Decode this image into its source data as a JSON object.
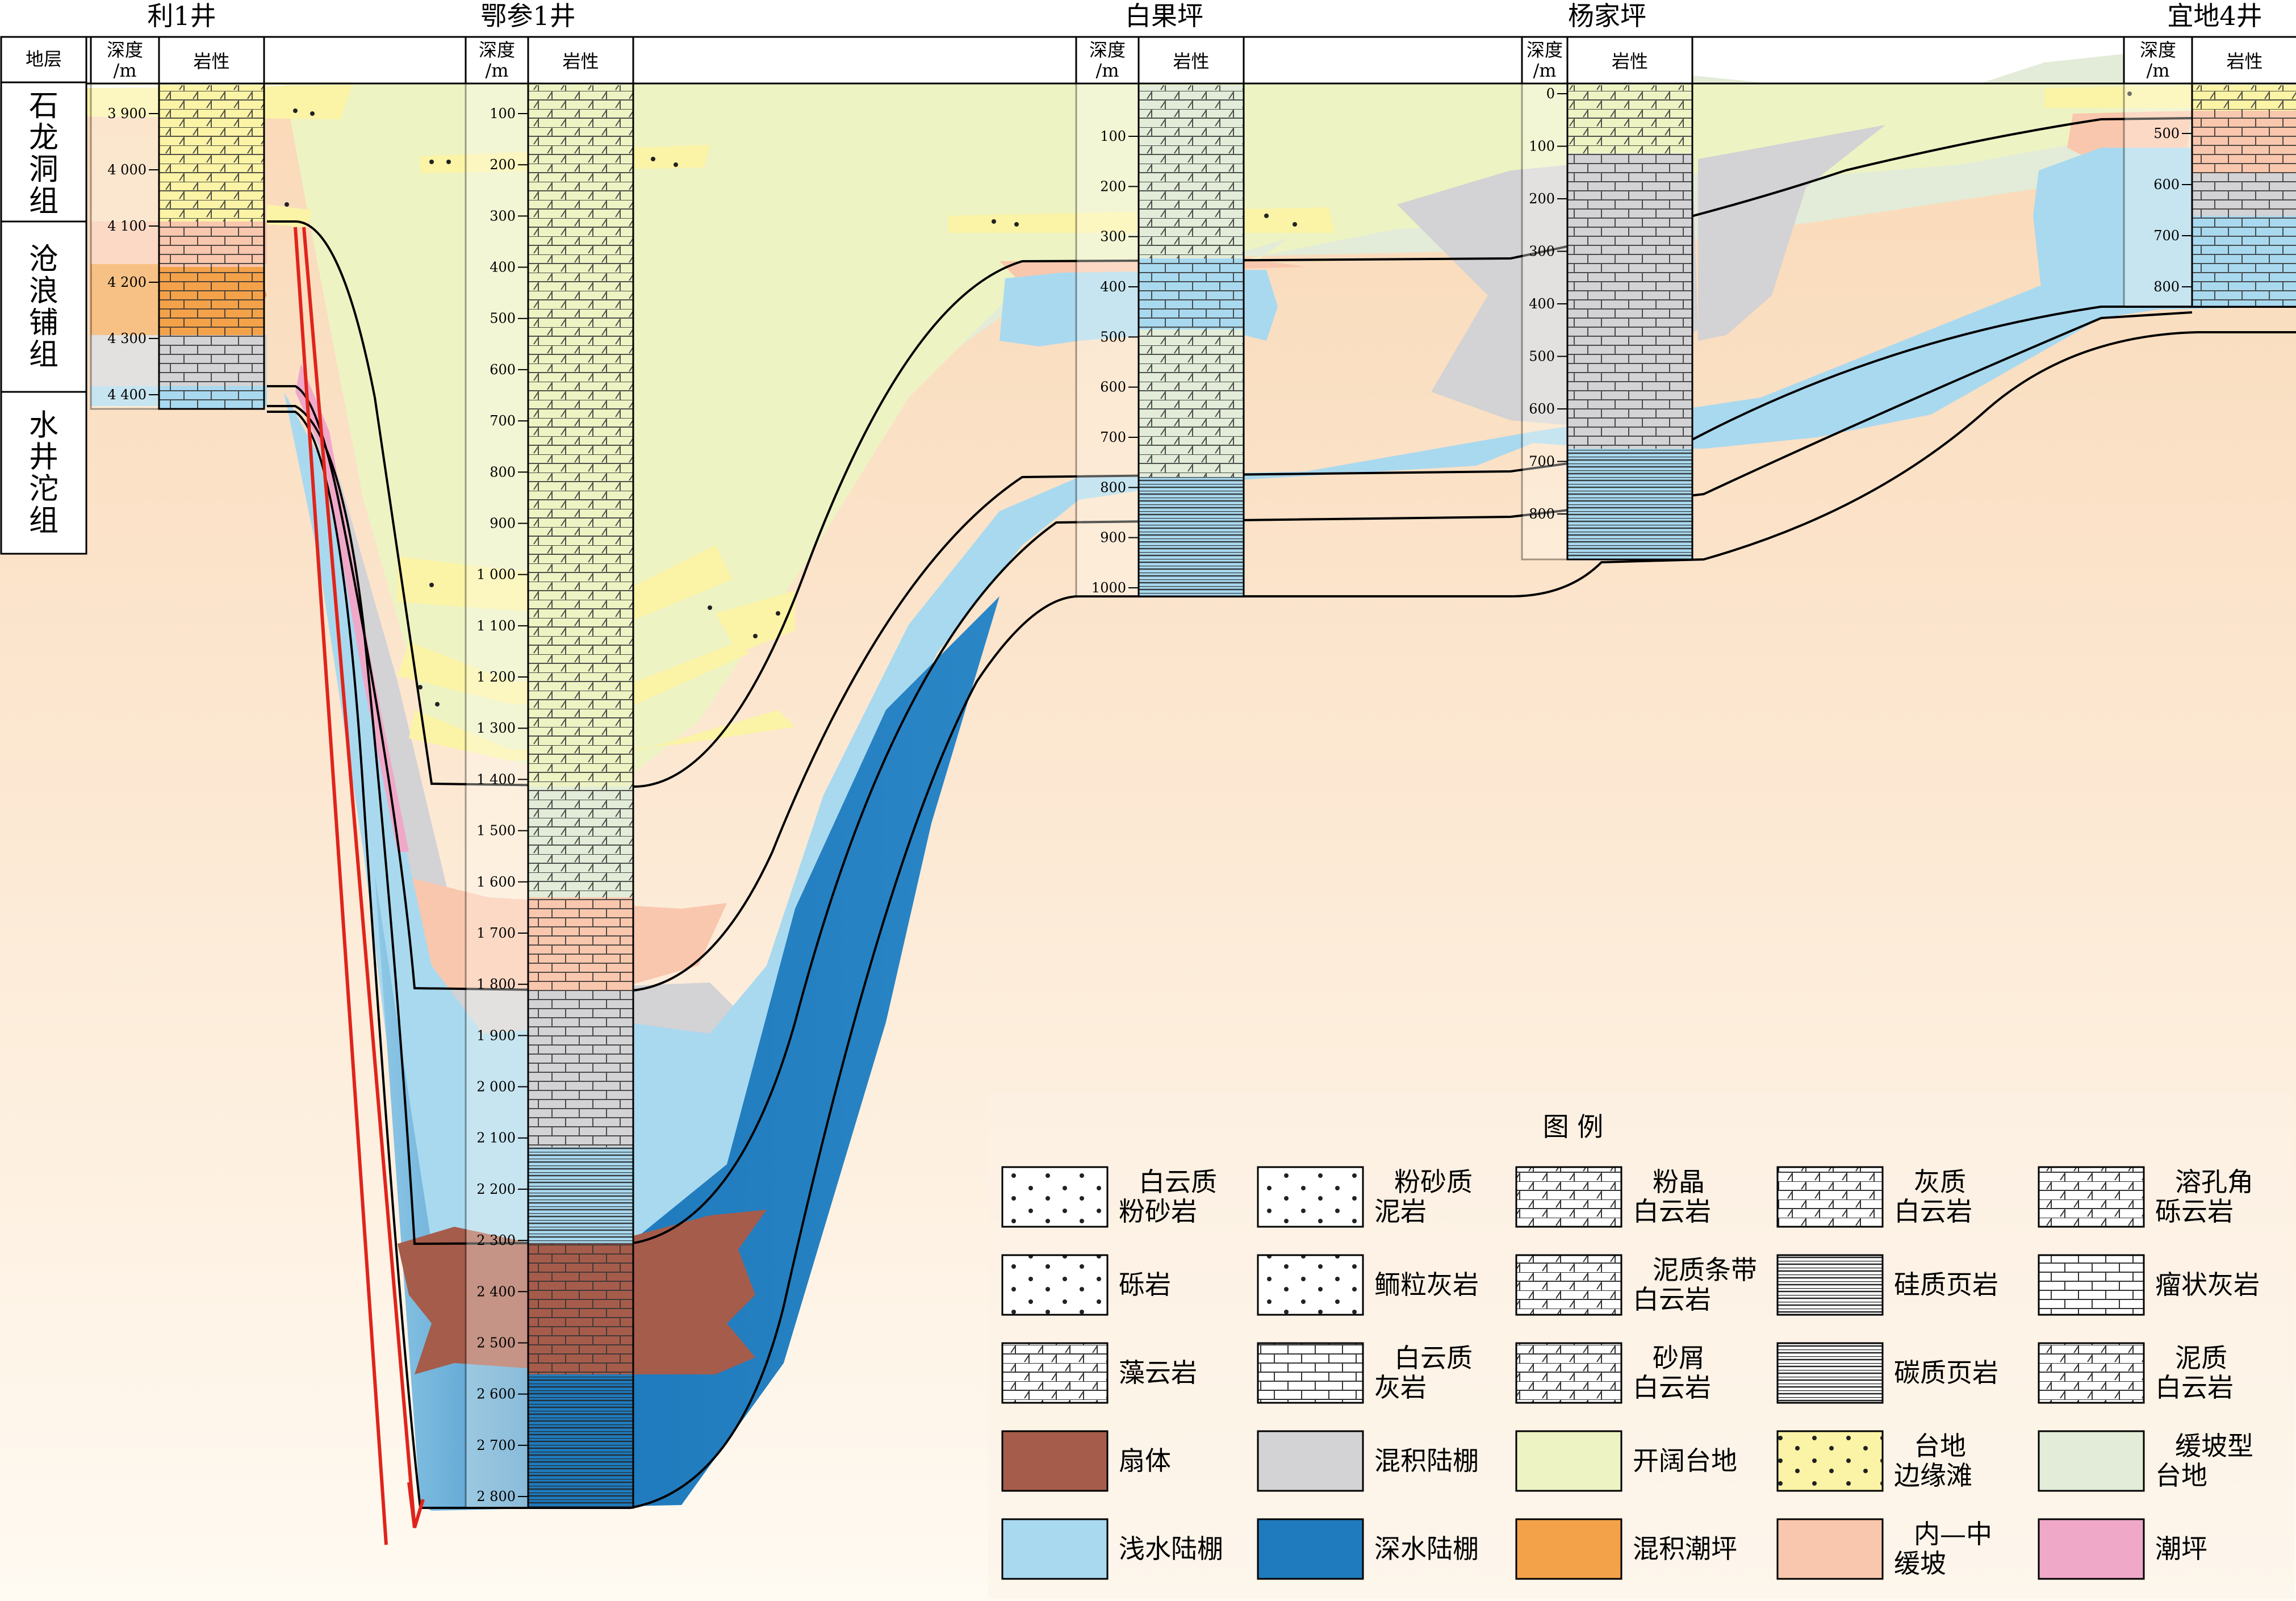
{
  "wells": [
    {
      "name": "利1井",
      "depth_header": "深度/m",
      "lith_header": "岩性",
      "ticks": [
        "3 900",
        "4 000",
        "4 100",
        "4 200",
        "4 300",
        "4 400"
      ]
    },
    {
      "name": "鄂参1井",
      "depth_header": "深度/m",
      "lith_header": "岩性",
      "ticks": [
        "100",
        "200",
        "300",
        "400",
        "500",
        "600",
        "700",
        "800",
        "900",
        "1 000",
        "1 100",
        "1 200",
        "1 300",
        "1 400",
        "1 500",
        "1 600",
        "1 700",
        "1 800",
        "1 900",
        "2 000",
        "2 100",
        "2 200",
        "2 300",
        "2 400",
        "2 500",
        "2 600",
        "2 700",
        "2 800"
      ]
    },
    {
      "name": "白果坪",
      "depth_header": "深度/m",
      "lith_header": "岩性",
      "ticks": [
        "100",
        "200",
        "300",
        "400",
        "500",
        "600",
        "700",
        "800",
        "900",
        "1000"
      ]
    },
    {
      "name": "杨家坪",
      "depth_header": "深度/m",
      "lith_header": "岩性",
      "ticks": [
        "0",
        "100",
        "200",
        "300",
        "400",
        "500",
        "600",
        "700",
        "800"
      ]
    },
    {
      "name": "宜地4井",
      "depth_header": "深度/m",
      "lith_header": "岩性",
      "ticks": [
        "500",
        "600",
        "700",
        "800"
      ]
    }
  ],
  "strata_header": "地层",
  "formations": [
    "石龙洞组",
    "沧浪铺组",
    "水井沱组"
  ],
  "legend": {
    "title": "图 例",
    "items": [
      {
        "label": "白云质\n粉砂岩",
        "kind": "pattern",
        "pattern": "dolo-siltstone"
      },
      {
        "label": "粉砂质\n泥岩",
        "kind": "pattern",
        "pattern": "silty-mudstone"
      },
      {
        "label": "粉晶\n白云岩",
        "kind": "pattern",
        "pattern": "silt-dolomite"
      },
      {
        "label": "灰质\n白云岩",
        "kind": "pattern",
        "pattern": "lime-dolomite"
      },
      {
        "label": "溶孔角\n砾云岩",
        "kind": "pattern",
        "pattern": "breccia-dolomite"
      },
      {
        "label": "砾岩",
        "kind": "pattern",
        "pattern": "conglomerate"
      },
      {
        "label": "鲕粒灰岩",
        "kind": "pattern",
        "pattern": "oolitic-limestone"
      },
      {
        "label": "泥质条带\n白云岩",
        "kind": "pattern",
        "pattern": "banded-dolomite"
      },
      {
        "label": "硅质页岩",
        "kind": "pattern",
        "pattern": "siliceous-shale"
      },
      {
        "label": "瘤状灰岩",
        "kind": "pattern",
        "pattern": "nodular-limestone"
      },
      {
        "label": "藻云岩",
        "kind": "pattern",
        "pattern": "algal-dolomite"
      },
      {
        "label": "白云质\n灰岩",
        "kind": "pattern",
        "pattern": "dolo-limestone"
      },
      {
        "label": "砂屑\n白云岩",
        "kind": "pattern",
        "pattern": "arenite-dolomite"
      },
      {
        "label": "碳质页岩",
        "kind": "pattern",
        "pattern": "carbon-shale"
      },
      {
        "label": "泥质\n白云岩",
        "kind": "pattern",
        "pattern": "argil-dolomite"
      },
      {
        "label": "扇体",
        "kind": "fill",
        "color": "#a65c4b"
      },
      {
        "label": "混积陆棚",
        "kind": "fill",
        "color": "#d3d2d4"
      },
      {
        "label": "开阔台地",
        "kind": "fill",
        "color": "#eef3c3"
      },
      {
        "label": "台地\n边缘滩",
        "kind": "dots",
        "color": "#fbf3a6"
      },
      {
        "label": "缓坡型\n台地",
        "kind": "fill",
        "color": "#e2ecd8"
      },
      {
        "label": "浅水陆棚",
        "kind": "fill",
        "color": "#a9d9ef"
      },
      {
        "label": "深水陆棚",
        "kind": "fill",
        "color": "#1f7bbd"
      },
      {
        "label": "混积潮坪",
        "kind": "fill",
        "color": "#f4a24a"
      },
      {
        "label": "内—中\n缓坡",
        "kind": "fill",
        "color": "#f9c7ad"
      },
      {
        "label": "潮坪",
        "kind": "fill",
        "color": "#f0a8c8"
      }
    ]
  },
  "colors": {
    "open_platform": "#eef3c3",
    "ramp_platform": "#e2ecd8",
    "shallow_shelf": "#a9d9ef",
    "deep_shelf": "#1f7bbd",
    "mixed_shelf": "#d3d2d4",
    "fan": "#a65c4b",
    "inner_ramp": "#f9c7ad",
    "tidal_flat": "#f0a8c8",
    "mixed_tidal": "#f4a24a",
    "shoal": "#fbf3a6",
    "basement": "#fbe2c8",
    "fault": "#e0241b"
  }
}
